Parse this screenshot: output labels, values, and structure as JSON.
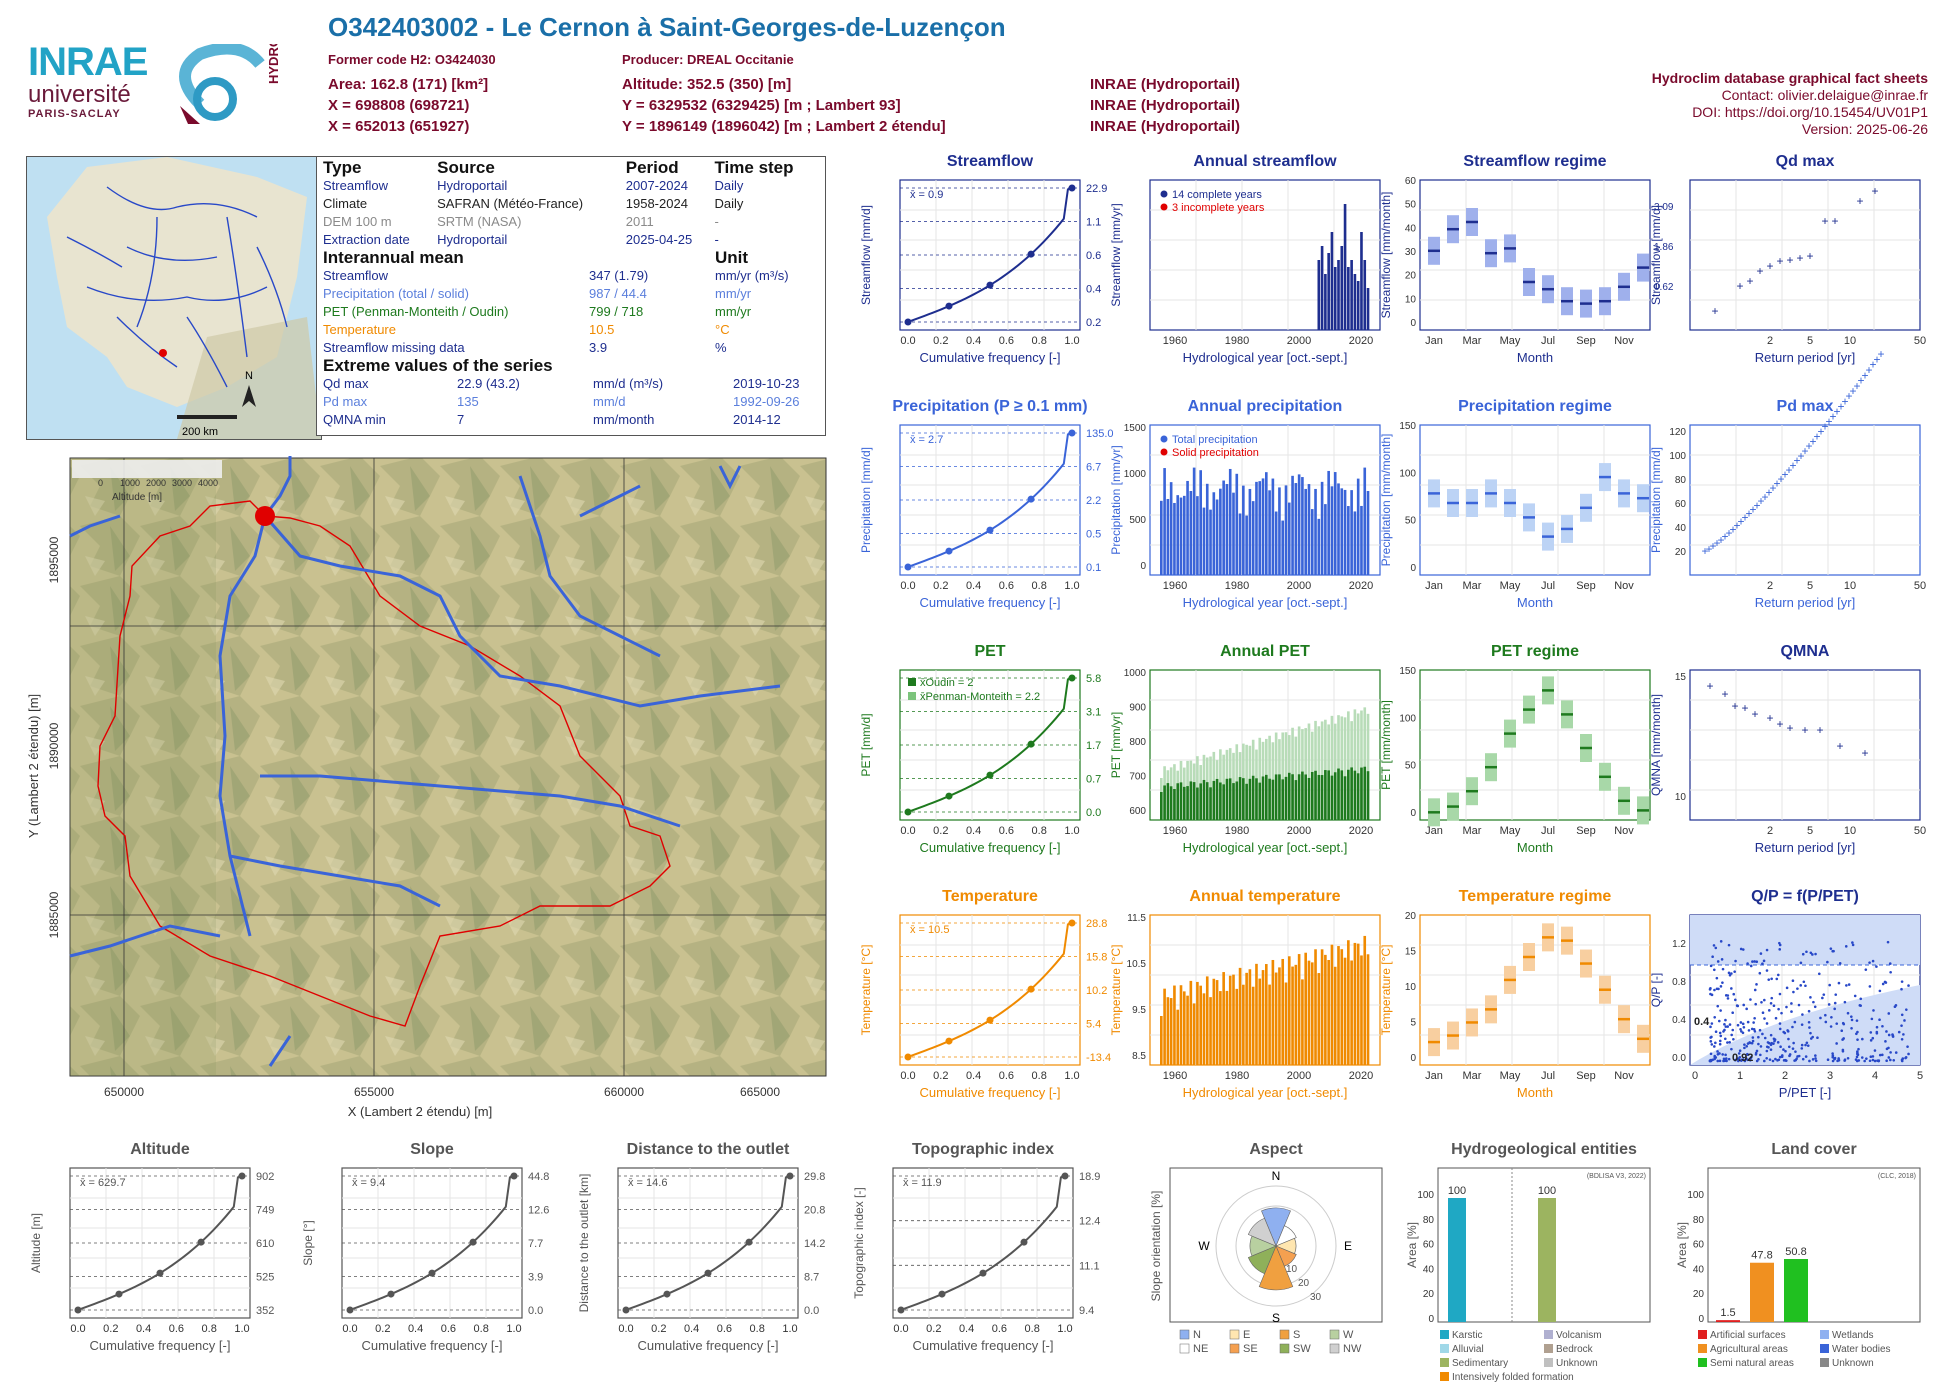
{
  "header": {
    "title": "O342403002 - Le Cernon à Saint-Georges-de-Luzençon",
    "former_code": "Former code H2: O3424030",
    "producer": "Producer: DREAL Occitanie",
    "area": "Area: 162.8 (171) [km²]",
    "altitude": "Altitude: 352.5 (350) [m]",
    "x_l93": "X = 698808 (698721)",
    "y_l93": "Y = 6329532 (6329425) [m ; Lambert 93]",
    "x_l2": "X = 652013 (651927)",
    "y_l2": "Y = 1896149 (1896042) [m ; Lambert 2 étendu]",
    "source1": "INRAE (Hydroportail)",
    "source2": "INRAE (Hydroportail)",
    "source3": "INRAE (Hydroportail)",
    "db_title": "Hydroclim database graphical fact sheets",
    "contact": "Contact: olivier.delaigue@inrae.fr",
    "doi": "DOI: https://doi.org/10.15454/UV01P1",
    "version": "Version: 2025-06-26"
  },
  "logos": {
    "inrae": "INRAE",
    "universite": "université",
    "paris_saclay": "PARIS-SACLAY",
    "hydro": "HYDRO"
  },
  "france_map": {
    "scale": "200 km",
    "north": "N"
  },
  "info": {
    "col_type": "Type",
    "col_source": "Source",
    "col_period": "Period",
    "col_timestep": "Time step",
    "rows": [
      {
        "type": "Streamflow",
        "source": "Hydroportail",
        "period": "2007-2024",
        "step": "Daily"
      },
      {
        "type": "Climate",
        "source": "SAFRAN (Météo-France)",
        "period": "1958-2024",
        "step": "Daily"
      },
      {
        "type": "DEM 100 m",
        "source": "SRTM (NASA)",
        "period": "2011",
        "step": "-"
      },
      {
        "type": "Extraction date",
        "source": "Hydroportail",
        "period": "2025-04-25",
        "step": "-"
      }
    ],
    "interannual_title": "Interannual mean",
    "unit_title": "Unit",
    "means": [
      {
        "label": "Streamflow",
        "value": "347 (1.79)",
        "unit": "mm/yr (m³/s)"
      },
      {
        "label": "Precipitation (total / solid)",
        "value": "987 / 44.4",
        "unit": "mm/yr"
      },
      {
        "label": "PET (Penman-Monteith / Oudin)",
        "value": "799 / 718",
        "unit": "mm/yr"
      },
      {
        "label": "Temperature",
        "value": "10.5",
        "unit": "°C"
      },
      {
        "label": "Streamflow missing data",
        "value": "3.9",
        "unit": "%"
      }
    ],
    "extreme_title": "Extreme values of the series",
    "extremes": [
      {
        "label": "Qd max",
        "value": "22.9 (43.2)",
        "unit": "mm/d (m³/s)",
        "date": "2019-10-23"
      },
      {
        "label": "Pd max",
        "value": "135",
        "unit": "mm/d",
        "date": "1992-09-26"
      },
      {
        "label": "QMNA min",
        "value": "7",
        "unit": "mm/month",
        "date": "2014-12"
      }
    ]
  },
  "basin_map": {
    "xlabel": "X (Lambert 2 étendu) [m]",
    "ylabel": "Y (Lambert 2 étendu) [m]",
    "xticks": [
      "650000",
      "655000",
      "660000",
      "665000"
    ],
    "yticks": [
      "1885000",
      "1890000",
      "1895000"
    ],
    "legend_title": "Altitude [m]",
    "legend_ticks": [
      "0",
      "1000",
      "2000",
      "3000",
      "4000"
    ]
  },
  "colors": {
    "streamflow": "#1e2e8f",
    "precip": "#3a64d8",
    "pet": "#1e7a1e",
    "temp": "#f08a00",
    "grey": "#555555",
    "red": "#e00000"
  },
  "chart_data": [
    {
      "id": "streamflow",
      "type": "line",
      "title": "Streamflow",
      "xlabel": "Cumulative frequency [-]",
      "ylabel": "Streamflow [mm/d]",
      "mean_label": "x̄ = 0.9",
      "right_ticks": [
        "22.9",
        "1.1",
        "0.6",
        "0.4",
        "0.2"
      ],
      "x": [
        0,
        0.25,
        0.5,
        0.75,
        1
      ],
      "y": [
        0.15,
        0.35,
        0.55,
        1.1,
        22.9
      ]
    },
    {
      "id": "annual_streamflow",
      "type": "bar",
      "title": "Annual streamflow",
      "xlabel": "Hydrological year [oct.-sept.]",
      "ylabel": "Streamflow [mm/yr]",
      "legend": [
        "14 complete years",
        "3 incomplete years"
      ],
      "xticks": [
        "1960",
        "1980",
        "2000",
        "2020"
      ]
    },
    {
      "id": "streamflow_regime",
      "type": "box",
      "title": "Streamflow regime",
      "xlabel": "Month",
      "ylabel": "Streamflow [mm/month]",
      "right_ticks": [
        "3.09",
        "1.86",
        "0.62"
      ],
      "yticks": [
        "0",
        "10",
        "20",
        "30",
        "40",
        "50",
        "60"
      ],
      "months": [
        "Jan",
        "Mar",
        "May",
        "Jul",
        "Sep",
        "Nov"
      ],
      "medians": [
        33,
        42,
        45,
        32,
        34,
        20,
        17,
        12,
        11,
        12,
        18,
        26
      ]
    },
    {
      "id": "qd_max",
      "type": "scatter",
      "title": "Qd max",
      "xlabel": "Return period [yr]",
      "ylabel": "Streamflow [mm/d]",
      "right_label": "Streamflow [m³/s]",
      "xticks": [
        "2",
        "5",
        "10",
        "50"
      ]
    },
    {
      "id": "precipitation",
      "type": "line",
      "title": "Precipitation (P ≥ 0.1 mm)",
      "xlabel": "Cumulative frequency [-]",
      "ylabel": "Precipitation [mm/d]",
      "mean_label": "x̄ = 2.7",
      "right_ticks": [
        "135.0",
        "6.7",
        "2.2",
        "0.5",
        "0.1"
      ]
    },
    {
      "id": "annual_precipitation",
      "type": "bar",
      "title": "Annual precipitation",
      "xlabel": "Hydrological year [oct.-sept.]",
      "ylabel": "Precipitation [mm/yr]",
      "legend": [
        "Total precipitation",
        "Solid precipitation"
      ],
      "yticks": [
        "0",
        "500",
        "1000",
        "1500"
      ],
      "xticks": [
        "1960",
        "1980",
        "2000",
        "2020"
      ]
    },
    {
      "id": "precip_regime",
      "type": "box",
      "title": "Precipitation regime",
      "xlabel": "Month",
      "ylabel": "Precipitation [mm/month]",
      "yticks": [
        "0",
        "50",
        "100",
        "150"
      ],
      "months": [
        "Jan",
        "Mar",
        "May",
        "Jul",
        "Sep",
        "Nov"
      ],
      "medians": [
        85,
        75,
        75,
        85,
        75,
        60,
        40,
        48,
        70,
        102,
        85,
        80
      ]
    },
    {
      "id": "pd_max",
      "type": "scatter",
      "title": "Pd max",
      "xlabel": "Return period [yr]",
      "ylabel": "Precipitation [mm/d]",
      "yticks": [
        "20",
        "40",
        "60",
        "80",
        "100",
        "120"
      ],
      "xticks": [
        "2",
        "5",
        "10",
        "50"
      ]
    },
    {
      "id": "pet",
      "type": "line",
      "title": "PET",
      "xlabel": "Cumulative frequency [-]",
      "ylabel": "PET [mm/d]",
      "legend": [
        "x̄Oudin = 2",
        "x̄Penman-Monteith = 2.2"
      ],
      "right_ticks": [
        "5.8",
        "3.1",
        "1.7",
        "0.7",
        "0.0"
      ]
    },
    {
      "id": "annual_pet",
      "type": "bar",
      "title": "Annual PET",
      "xlabel": "Hydrological year [oct.-sept.]",
      "ylabel": "PET [mm/yr]",
      "yticks": [
        "600",
        "700",
        "800",
        "900",
        "1000"
      ],
      "xticks": [
        "1960",
        "1980",
        "2000",
        "2020"
      ]
    },
    {
      "id": "pet_regime",
      "type": "box",
      "title": "PET regime",
      "xlabel": "Month",
      "ylabel": "PET [mm/month]",
      "yticks": [
        "0",
        "50",
        "100",
        "150"
      ],
      "months": [
        "Jan",
        "Mar",
        "May",
        "Jul",
        "Sep",
        "Nov"
      ]
    },
    {
      "id": "qmna",
      "type": "scatter",
      "title": "QMNA",
      "xlabel": "Return period [yr]",
      "ylabel": "QMNA [mm/month]",
      "yticks": [
        "10",
        "15"
      ],
      "xticks": [
        "2",
        "5",
        "10",
        "50"
      ]
    },
    {
      "id": "temperature",
      "type": "line",
      "title": "Temperature",
      "xlabel": "Cumulative frequency [-]",
      "ylabel": "Temperature [°C]",
      "mean_label": "x̄ = 10.5",
      "right_ticks": [
        "28.8",
        "15.8",
        "10.2",
        "5.4",
        "-13.4"
      ]
    },
    {
      "id": "annual_temperature",
      "type": "bar",
      "title": "Annual temperature",
      "xlabel": "Hydrological year [oct.-sept.]",
      "ylabel": "Temperature [°C]",
      "yticks": [
        "8.5",
        "9.5",
        "10.5",
        "11.5"
      ],
      "xticks": [
        "1960",
        "1980",
        "2000",
        "2020"
      ]
    },
    {
      "id": "temp_regime",
      "type": "box",
      "title": "Temperature regime",
      "xlabel": "Month",
      "ylabel": "Temperature [°C]",
      "yticks": [
        "0",
        "5",
        "10",
        "15",
        "20"
      ],
      "months": [
        "Jan",
        "Mar",
        "May",
        "Jul",
        "Sep",
        "Nov"
      ],
      "medians": [
        3.5,
        4.5,
        6.5,
        8.5,
        13,
        16.5,
        19.5,
        19,
        15.5,
        11.5,
        7,
        4
      ]
    },
    {
      "id": "qp",
      "type": "scatter",
      "title": "Q/P = f(P/PET)",
      "xlabel": "P/PET [-]",
      "ylabel": "Q/P [-]",
      "xticks": [
        "0",
        "1",
        "2",
        "3",
        "4",
        "5"
      ],
      "yticks": [
        "0.0",
        "0.4",
        "0.8",
        "1.2"
      ],
      "annotations": [
        "0.4",
        "0.92"
      ]
    },
    {
      "id": "altitude",
      "type": "line",
      "title": "Altitude",
      "xlabel": "Cumulative frequency [-]",
      "ylabel": "Altitude [m]",
      "mean_label": "x̄ = 629.7",
      "right_ticks": [
        "902",
        "749",
        "610",
        "525",
        "352"
      ]
    },
    {
      "id": "slope",
      "type": "line",
      "title": "Slope",
      "xlabel": "Cumulative frequency [-]",
      "ylabel": "Slope [°]",
      "mean_label": "x̄ = 9.4",
      "right_ticks": [
        "44.8",
        "12.6",
        "7.7",
        "3.9",
        "0.0"
      ]
    },
    {
      "id": "distance",
      "type": "line",
      "title": "Distance to the outlet",
      "xlabel": "Cumulative frequency [-]",
      "ylabel": "Distance to the outlet [km]",
      "mean_label": "x̄ = 14.6",
      "right_ticks": [
        "29.8",
        "20.8",
        "14.2",
        "8.7",
        "0.0"
      ]
    },
    {
      "id": "topo_index",
      "type": "line",
      "title": "Topographic index",
      "xlabel": "Cumulative frequency [-]",
      "ylabel": "Topographic index [-]",
      "mean_label": "x̄ = 11.9",
      "right_ticks": [
        "18.9",
        "12.4",
        "11.1",
        "9.4"
      ]
    },
    {
      "id": "aspect",
      "type": "rose",
      "title": "Aspect",
      "ylabel": "Slope orientation [%]",
      "directions": [
        "N",
        "E",
        "S",
        "W"
      ],
      "legend": [
        "N",
        "NE",
        "E",
        "SE",
        "S",
        "SW",
        "W",
        "NW"
      ],
      "ring_labels": [
        "10",
        "20",
        "30"
      ]
    },
    {
      "id": "hydrogeology",
      "type": "bar",
      "title": "Hydrogeological entities",
      "ylabel": "Area [%]",
      "source": "(BDLISA V3, 2022)",
      "values": [
        100,
        100
      ],
      "labels": [
        "100",
        "100"
      ],
      "legend": [
        "Karstic",
        "Volcanism",
        "Alluvial",
        "Bedrock",
        "Sedimentary",
        "Unknown",
        "Intensively folded formation"
      ]
    },
    {
      "id": "land_cover",
      "type": "bar",
      "title": "Land cover",
      "ylabel": "Area [%]",
      "source": "(CLC, 2018)",
      "values": [
        1.5,
        47.8,
        50.8
      ],
      "labels": [
        "1.5",
        "47.8",
        "50.8"
      ],
      "legend": [
        "Artificial surfaces",
        "Wetlands",
        "Agricultural areas",
        "Water bodies",
        "Semi natural areas",
        "Unknown"
      ]
    }
  ]
}
